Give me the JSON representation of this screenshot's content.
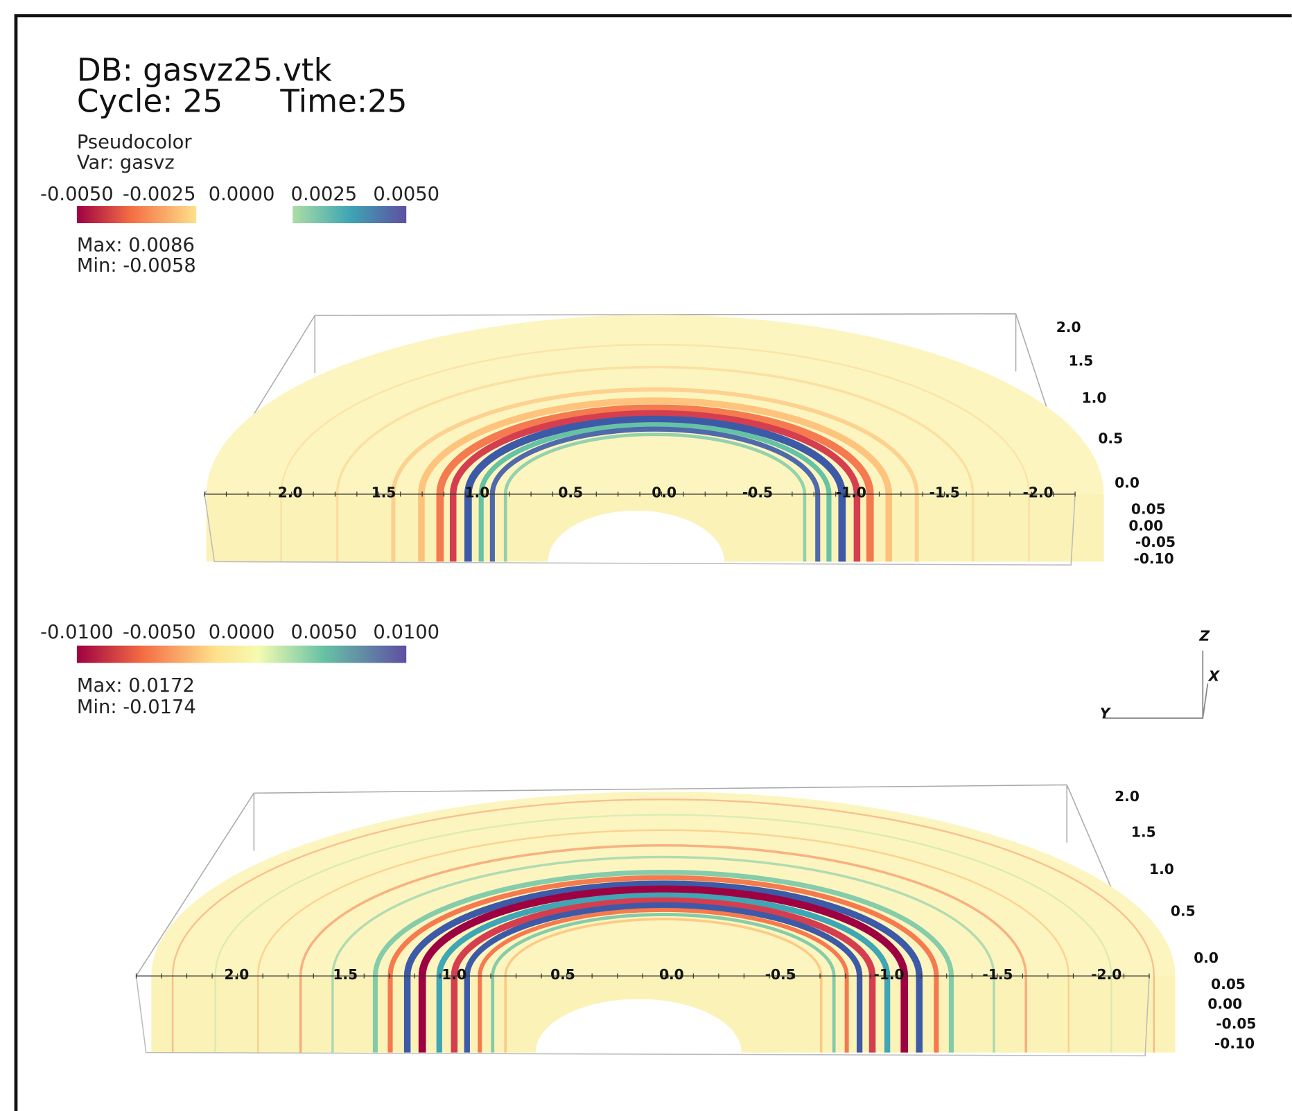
{
  "header": {
    "db": "DB: gasvz25.vtk",
    "cycle": "Cycle: 25",
    "time": "Time:25"
  },
  "legend_top": {
    "plot": "Pseudocolor",
    "var": "Var: gasvz",
    "ticks": [
      "-0.0050",
      "-0.0025",
      "0.0000",
      "0.0025",
      "0.0050"
    ],
    "max": "Max:  0.0086",
    "min": "Min: -0.0058"
  },
  "legend_bottom": {
    "ticks": [
      "-0.0100",
      "-0.0050",
      "0.0000",
      "0.0050",
      "0.0100"
    ],
    "max": "Max:  0.0172",
    "min": "Min: -0.0174"
  },
  "panels": [
    {
      "x_labels": [
        "2.0",
        "1.5",
        "1.0",
        "0.5",
        "0.0",
        "-0.5",
        "-1.0",
        "-1.5",
        "-2.0"
      ],
      "y_labels": [
        "2.0",
        "1.5",
        "1.0",
        "0.5",
        "0.0"
      ],
      "z_labels": [
        "0.05",
        "0.00",
        "-0.05",
        "-0.10"
      ]
    },
    {
      "x_labels": [
        "2.0",
        "1.5",
        "1.0",
        "0.5",
        "0.0",
        "-0.5",
        "-1.0",
        "-1.5",
        "-2.0"
      ],
      "y_labels": [
        "2.0",
        "1.5",
        "1.0",
        "0.5",
        "0.0"
      ],
      "z_labels": [
        "0.05",
        "0.00",
        "-0.05",
        "-0.10"
      ]
    }
  ],
  "triad": {
    "z": "Z",
    "x": "X",
    "y": "Y"
  }
}
